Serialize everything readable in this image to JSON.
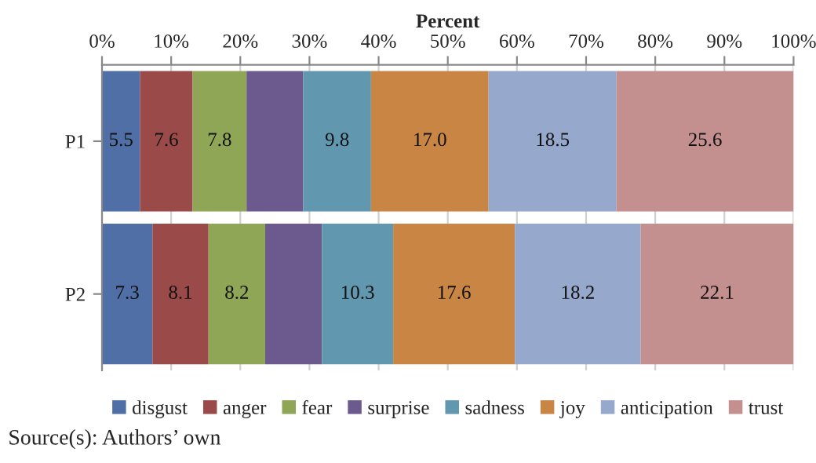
{
  "chart_data": {
    "type": "bar",
    "orientation": "horizontal",
    "stacked": true,
    "xlabel": "Percent",
    "categories": [
      "P1",
      "P2"
    ],
    "series": [
      {
        "name": "disgust",
        "color": "#4f6fa6",
        "values": [
          5.5,
          7.3
        ],
        "value_labels": [
          "5.5",
          "7.3"
        ]
      },
      {
        "name": "anger",
        "color": "#9a4a48",
        "values": [
          7.6,
          8.1
        ],
        "value_labels": [
          "7.6",
          "8.1"
        ]
      },
      {
        "name": "fear",
        "color": "#8fa656",
        "values": [
          7.8,
          8.2
        ],
        "value_labels": [
          "7.8",
          "8.2"
        ]
      },
      {
        "name": "surprise",
        "color": "#6c5a8e",
        "values": [
          8.2,
          8.2
        ],
        "value_labels": [
          null,
          null
        ]
      },
      {
        "name": "sadness",
        "color": "#6198b0",
        "values": [
          9.8,
          10.3
        ],
        "value_labels": [
          "9.8",
          "10.3"
        ]
      },
      {
        "name": "joy",
        "color": "#c98544",
        "values": [
          17.0,
          17.6
        ],
        "value_labels": [
          "17.0",
          "17.6"
        ]
      },
      {
        "name": "anticipation",
        "color": "#96a8cc",
        "values": [
          18.5,
          18.2
        ],
        "value_labels": [
          "18.5",
          "18.2"
        ]
      },
      {
        "name": "trust",
        "color": "#c38f8f",
        "values": [
          25.6,
          22.1
        ],
        "value_labels": [
          "25.6",
          "22.1"
        ]
      }
    ],
    "xlim": [
      0,
      100
    ],
    "xticks": [
      {
        "value": 0,
        "label": "0%"
      },
      {
        "value": 10,
        "label": "10%"
      },
      {
        "value": 20,
        "label": "20%"
      },
      {
        "value": 30,
        "label": "30%"
      },
      {
        "value": 40,
        "label": "40%"
      },
      {
        "value": 50,
        "label": "50%"
      },
      {
        "value": 60,
        "label": "60%"
      },
      {
        "value": 70,
        "label": "70%"
      },
      {
        "value": 80,
        "label": "80%"
      },
      {
        "value": 90,
        "label": "90%"
      },
      {
        "value": 100,
        "label": "100%"
      }
    ],
    "grid": "x",
    "legend": "bottom",
    "annotations": [
      "Source(s): Authors’ own"
    ]
  }
}
